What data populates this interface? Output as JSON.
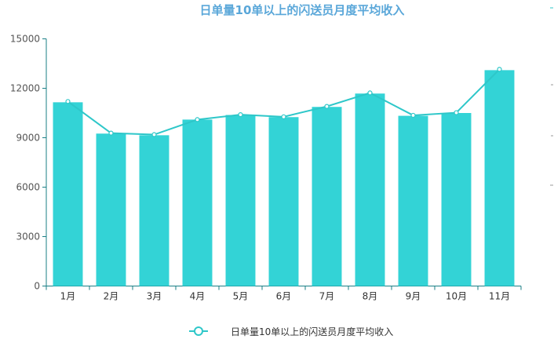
{
  "chart_data": {
    "type": "bar",
    "title": "日单量10单以上的闪送员月度平均收入",
    "xlabel": "",
    "ylabel": "",
    "categories": [
      "1月",
      "2月",
      "3月",
      "4月",
      "5月",
      "6月",
      "7月",
      "8月",
      "9月",
      "10月",
      "11月"
    ],
    "series": [
      {
        "name": "日单量10单以上的闪送员月度平均收入",
        "type": "bar",
        "values": [
          11150,
          9250,
          9150,
          10100,
          10380,
          10250,
          10870,
          11680,
          10330,
          10500,
          13100
        ]
      },
      {
        "name": "日单量10单以上的闪送员月度平均收入",
        "type": "line",
        "values": [
          11200,
          9280,
          9190,
          10100,
          10400,
          10270,
          10900,
          11720,
          10360,
          10520,
          13150
        ]
      }
    ],
    "ylim": [
      0,
      15000
    ],
    "yticks": [
      0,
      3000,
      6000,
      9000,
      12000,
      15000
    ],
    "grid": false,
    "legend_position": "bottom-center"
  },
  "colors": {
    "bar": "#33d3d6",
    "line": "#2ec7c9",
    "axis": "#1a7f86",
    "title": "#5aa7d9"
  },
  "legend": {
    "label": "日单量10单以上的闪送员月度平均收入"
  }
}
